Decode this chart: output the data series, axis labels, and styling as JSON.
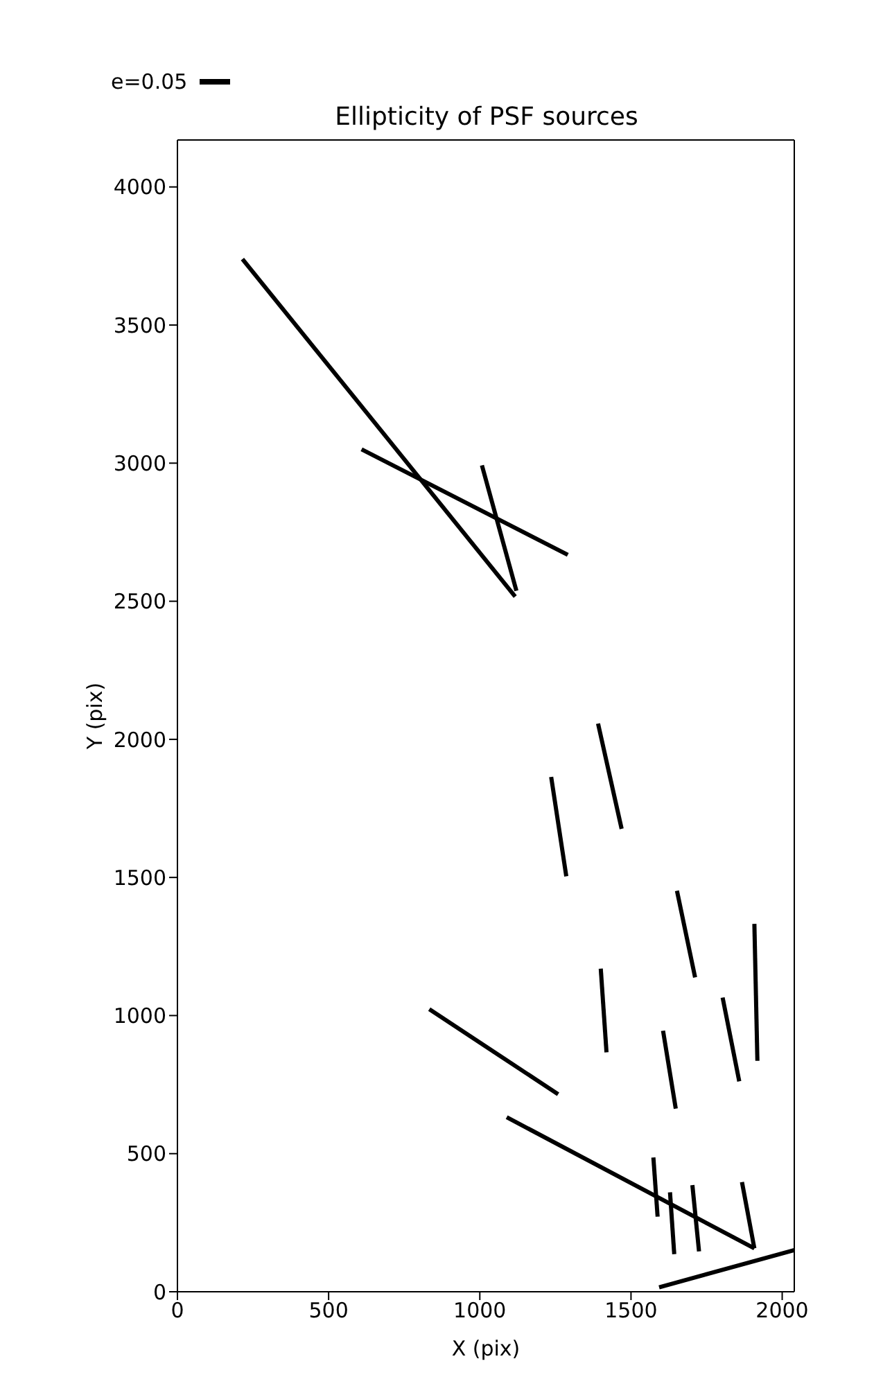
{
  "chart_data": {
    "type": "line",
    "title": "Ellipticity of PSF sources",
    "xlabel": "X (pix)",
    "ylabel": "Y (pix)",
    "annotations": [
      "e=0.05"
    ],
    "xlim": [
      0,
      2040
    ],
    "xticks": [
      0,
      500,
      1000,
      1500,
      2000
    ],
    "ylim": [
      0,
      4170
    ],
    "yticks": [
      0,
      500,
      1000,
      1500,
      2000,
      2500,
      3000,
      3500,
      4000
    ],
    "grid": false,
    "marker": "none",
    "line_style": "solid",
    "series": [
      {
        "color": "#000000",
        "x": [
          215,
          1117
        ],
        "values": [
          3739,
          2517
        ]
      },
      {
        "color": "#000000",
        "x": [
          609,
          1291
        ],
        "values": [
          3050,
          2668
        ]
      },
      {
        "color": "#000000",
        "x": [
          1007,
          1121
        ],
        "values": [
          2992,
          2538
        ]
      },
      {
        "color": "#000000",
        "x": [
          1391,
          1469
        ],
        "values": [
          2057,
          1676
        ]
      },
      {
        "color": "#000000",
        "x": [
          1236,
          1286
        ],
        "values": [
          1864,
          1504
        ]
      },
      {
        "color": "#000000",
        "x": [
          1652,
          1712
        ],
        "values": [
          1452,
          1138
        ]
      },
      {
        "color": "#000000",
        "x": [
          1908,
          1918
        ],
        "values": [
          1332,
          836
        ]
      },
      {
        "color": "#000000",
        "x": [
          1400,
          1419
        ],
        "values": [
          1170,
          867
        ]
      },
      {
        "color": "#000000",
        "x": [
          1803,
          1858
        ],
        "values": [
          1065,
          762
        ]
      },
      {
        "color": "#000000",
        "x": [
          1606,
          1648
        ],
        "values": [
          945,
          663
        ]
      },
      {
        "color": "#000000",
        "x": [
          833,
          1259
        ],
        "values": [
          1023,
          715
        ]
      },
      {
        "color": "#000000",
        "x": [
          1089,
          1908
        ],
        "values": [
          632,
          157
        ]
      },
      {
        "color": "#000000",
        "x": [
          1574,
          1588
        ],
        "values": [
          486,
          272
        ]
      },
      {
        "color": "#000000",
        "x": [
          1629,
          1643
        ],
        "values": [
          360,
          136
        ]
      },
      {
        "color": "#000000",
        "x": [
          1703,
          1725
        ],
        "values": [
          386,
          146
        ]
      },
      {
        "color": "#000000",
        "x": [
          1867,
          1908
        ],
        "values": [
          397,
          157
        ]
      },
      {
        "color": "#000000",
        "x": [
          1593,
          2040
        ],
        "values": [
          16,
          151
        ]
      }
    ]
  }
}
